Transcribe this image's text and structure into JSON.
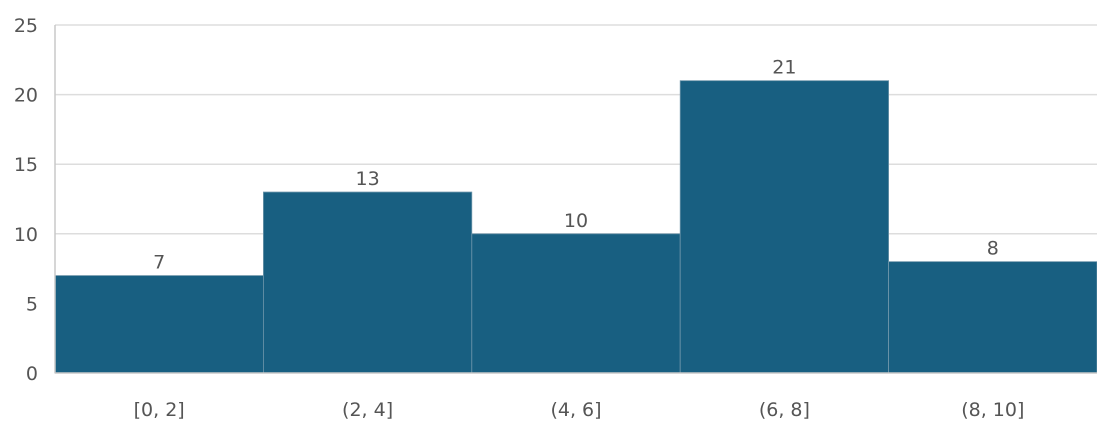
{
  "chart_data": {
    "type": "bar",
    "title": "",
    "xlabel": "",
    "ylabel": "",
    "categories": [
      "[0, 2]",
      "(2, 4]",
      "(4, 6]",
      "(6, 8]",
      "(8, 10]"
    ],
    "values": [
      7,
      13,
      10,
      21,
      8
    ],
    "ylim": [
      0,
      25
    ],
    "yticks": [
      0,
      5,
      10,
      15,
      20,
      25
    ],
    "grid": true,
    "legend": "none",
    "data_labels": true,
    "colors": {
      "bar": "#185f81",
      "grid": "#dddddd",
      "axis": "#c8c8c8",
      "text": "#555555",
      "bar_edge": "#6f96ab"
    }
  }
}
